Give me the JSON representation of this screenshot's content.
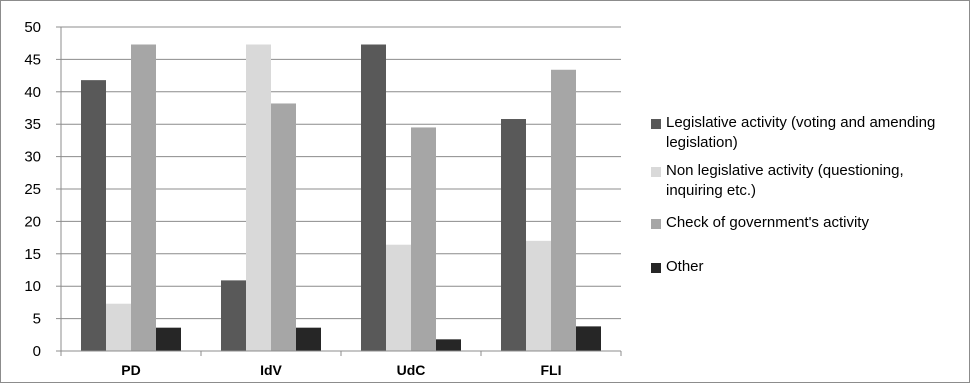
{
  "chart_data": {
    "type": "bar",
    "categories": [
      "PD",
      "IdV",
      "UdC",
      "FLI"
    ],
    "series": [
      {
        "name": "Legislative activity (voting and amending legislation)",
        "color": "#595959",
        "values": [
          41.8,
          10.9,
          47.3,
          35.8
        ]
      },
      {
        "name": "Non legislative activity (questioning, inquiring etc.)",
        "color": "#d9d9d9",
        "values": [
          7.3,
          47.3,
          16.4,
          17.0
        ]
      },
      {
        "name": "Check of government's activity",
        "color": "#a6a6a6",
        "values": [
          47.3,
          38.2,
          34.5,
          43.4
        ]
      },
      {
        "name": "Other",
        "color": "#262626",
        "values": [
          3.6,
          3.6,
          1.8,
          3.8
        ]
      }
    ],
    "yticks": [
      "0",
      "5",
      "10",
      "15",
      "20",
      "25",
      "30",
      "35",
      "40",
      "45",
      "50"
    ],
    "ylim": [
      0,
      50
    ],
    "title": "",
    "xlabel": "",
    "ylabel": "",
    "grid": true,
    "legend_position": "right"
  }
}
